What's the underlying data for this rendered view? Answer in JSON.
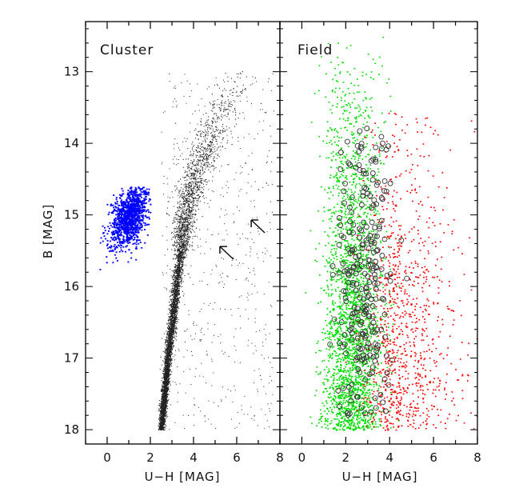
{
  "chart_data": [
    {
      "type": "scatter",
      "title": "Cluster",
      "xlabel": "U−H [MAG]",
      "ylabel": "B [MAG]",
      "xlim": [
        -1,
        8
      ],
      "ylim": [
        18.2,
        12.3
      ],
      "y_inverted": true,
      "xticks": [
        0,
        2,
        4,
        6,
        8
      ],
      "yticks": [
        13,
        14,
        15,
        16,
        17,
        18
      ],
      "grid": false,
      "colors": {
        "cluster_sequence": "#222222",
        "blue_group": "#0000ff"
      },
      "annotations": [
        {
          "type": "arrow",
          "x": 5.85,
          "y": 15.62,
          "direction": "up-left"
        },
        {
          "type": "arrow",
          "x": 7.3,
          "y": 15.25,
          "direction": "up-left"
        }
      ],
      "series": [
        {
          "color": "#222222",
          "trend_ridge": {
            "B": [
              18.0,
              17.0,
              16.0,
              15.0,
              14.5,
              14.0,
              13.5,
              13.1
            ],
            "U_H": [
              2.5,
              2.8,
              3.2,
              3.6,
              4.0,
              4.6,
              5.3,
              6.0
            ]
          }
        },
        {
          "color": "#0000ff",
          "center": [
            1.0,
            15.0
          ],
          "x_range": [
            -0.7,
            2.0
          ],
          "y_range": [
            14.6,
            16.0
          ]
        }
      ]
    },
    {
      "type": "scatter",
      "title": "Field",
      "xlabel": "U−H [MAG]",
      "xlim": [
        -1,
        8
      ],
      "ylim": [
        18.2,
        12.3
      ],
      "y_inverted": true,
      "xticks": [
        0,
        2,
        4,
        6,
        8
      ],
      "grid": false,
      "colors": {
        "green": "#00dd00",
        "red": "#ff0000",
        "circles": "#333333"
      },
      "series": [
        {
          "color": "#00dd00",
          "center_x": 2.3,
          "x_spread": 1.1,
          "y_range": [
            12.4,
            18.0
          ]
        },
        {
          "color": "#ff0000",
          "center_x": 4.5,
          "x_spread": 1.4,
          "y_range": [
            13.3,
            18.0
          ]
        },
        {
          "color": "#333333",
          "marker": "circle",
          "center_x": 2.9,
          "x_spread": 1.0,
          "y_range": [
            12.4,
            17.8
          ]
        }
      ]
    }
  ]
}
